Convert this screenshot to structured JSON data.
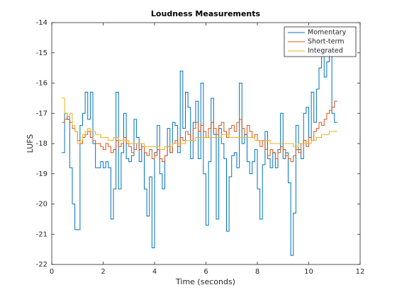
{
  "chart_data": {
    "type": "stairs",
    "title": "Loudness Measurements",
    "xlabel": "Time (seconds)",
    "ylabel": "LUFS",
    "xlim": [
      0,
      12
    ],
    "xticks": [
      0,
      2,
      4,
      6,
      8,
      10,
      12
    ],
    "ylim": [
      -22,
      -14
    ],
    "yticks": [
      -22,
      -21,
      -20,
      -19,
      -18,
      -17,
      -16,
      -15,
      -14
    ],
    "legend": "northeast",
    "x": [
      0.4,
      0.5,
      0.6,
      0.7,
      0.8,
      0.9,
      1.0,
      1.1,
      1.2,
      1.3,
      1.4,
      1.5,
      1.6,
      1.7,
      1.8,
      1.9,
      2.0,
      2.1,
      2.2,
      2.3,
      2.4,
      2.5,
      2.6,
      2.7,
      2.8,
      2.9,
      3.0,
      3.1,
      3.2,
      3.3,
      3.4,
      3.5,
      3.6,
      3.7,
      3.8,
      3.9,
      4.0,
      4.1,
      4.2,
      4.3,
      4.4,
      4.5,
      4.6,
      4.7,
      4.8,
      4.9,
      5.0,
      5.1,
      5.2,
      5.3,
      5.4,
      5.5,
      5.6,
      5.7,
      5.8,
      5.9,
      6.0,
      6.1,
      6.2,
      6.3,
      6.4,
      6.5,
      6.6,
      6.7,
      6.8,
      6.9,
      7.0,
      7.1,
      7.2,
      7.3,
      7.4,
      7.5,
      7.6,
      7.7,
      7.8,
      7.9,
      8.0,
      8.1,
      8.2,
      8.3,
      8.4,
      8.5,
      8.6,
      8.7,
      8.8,
      8.9,
      9.0,
      9.1,
      9.2,
      9.3,
      9.4,
      9.5,
      9.6,
      9.7,
      9.8,
      9.9,
      10.0,
      10.1,
      10.2,
      10.3,
      10.4,
      10.5,
      10.6,
      10.7,
      10.8,
      10.9,
      11.0
    ],
    "series": [
      {
        "name": "Momentary",
        "color": "#0072bd",
        "values": [
          -18.3,
          -17.0,
          -17.2,
          -18.8,
          -20.0,
          -20.85,
          -20.85,
          -17.4,
          -17.0,
          -16.3,
          -17.2,
          -16.3,
          -18.0,
          -18.8,
          -18.8,
          -18.6,
          -18.8,
          -18.6,
          -18.8,
          -20.5,
          -19.5,
          -16.3,
          -19.5,
          -18.3,
          -17.0,
          -18.5,
          -18.6,
          -18.4,
          -17.2,
          -17.8,
          -18.6,
          -18.0,
          -19.5,
          -20.4,
          -19.1,
          -21.45,
          -18.3,
          -17.4,
          -19.0,
          -19.5,
          -18.4,
          -17.5,
          -18.3,
          -17.3,
          -17.4,
          -18.3,
          -15.6,
          -17.5,
          -16.3,
          -16.8,
          -18.5,
          -17.3,
          -16.6,
          -18.5,
          -16.0,
          -19.0,
          -20.7,
          -18.6,
          -16.5,
          -17.7,
          -20.5,
          -17.5,
          -18.0,
          -18.5,
          -20.9,
          -19.1,
          -18.4,
          -18.3,
          -18.8,
          -16.0,
          -18.0,
          -17.7,
          -18.6,
          -19.0,
          -18.6,
          -18.2,
          -19.5,
          -20.5,
          -18.7,
          -17.6,
          -18.5,
          -18.8,
          -18.3,
          -18.8,
          -18.2,
          -17.0,
          -18.5,
          -18.3,
          -19.3,
          -21.7,
          -20.3,
          -17.4,
          -18.2,
          -18.5,
          -17.0,
          -16.8,
          -17.8,
          -16.3,
          -17.3,
          -16.2,
          -15.5,
          -14.8,
          -15.8,
          -15.3,
          -14.8,
          -17.0,
          -17.3
        ]
      },
      {
        "name": "Short-term",
        "color": "#d95319",
        "values": [
          -17.3,
          -17.2,
          -17.1,
          -17.3,
          -17.5,
          -17.6,
          -17.9,
          -18.0,
          -17.8,
          -17.7,
          -17.6,
          -17.8,
          -17.9,
          -18.0,
          -18.0,
          -18.1,
          -18.2,
          -18.0,
          -18.1,
          -18.3,
          -18.2,
          -17.9,
          -18.1,
          -18.0,
          -17.8,
          -18.0,
          -18.1,
          -18.3,
          -18.2,
          -18.0,
          -18.2,
          -18.1,
          -18.3,
          -18.4,
          -18.2,
          -18.5,
          -18.4,
          -18.2,
          -18.5,
          -18.6,
          -18.4,
          -18.1,
          -18.3,
          -18.0,
          -17.9,
          -18.1,
          -17.8,
          -17.9,
          -17.6,
          -17.7,
          -17.9,
          -17.5,
          -17.3,
          -17.6,
          -17.4,
          -17.6,
          -17.8,
          -17.5,
          -17.3,
          -17.5,
          -17.7,
          -17.4,
          -17.3,
          -17.6,
          -17.8,
          -17.5,
          -17.4,
          -17.6,
          -17.3,
          -17.2,
          -17.5,
          -17.7,
          -17.4,
          -17.6,
          -17.8,
          -17.7,
          -17.9,
          -18.1,
          -17.9,
          -18.2,
          -18.4,
          -18.2,
          -18.3,
          -18.5,
          -18.3,
          -18.1,
          -18.2,
          -18.4,
          -18.5,
          -18.6,
          -18.4,
          -18.2,
          -18.3,
          -18.0,
          -17.9,
          -18.1,
          -17.8,
          -17.9,
          -17.6,
          -17.5,
          -17.3,
          -17.4,
          -17.2,
          -17.0,
          -16.9,
          -16.8,
          -16.6
        ]
      },
      {
        "name": "Integrated",
        "color": "#edb120",
        "values": [
          -16.5,
          -17.0,
          -17.1,
          -17.0,
          -17.4,
          -17.6,
          -18.0,
          -17.9,
          -17.7,
          -17.6,
          -17.5,
          -17.6,
          -17.6,
          -17.7,
          -17.7,
          -17.8,
          -17.8,
          -17.8,
          -17.9,
          -17.9,
          -17.8,
          -17.8,
          -17.9,
          -17.9,
          -17.9,
          -17.9,
          -18.0,
          -18.0,
          -18.0,
          -18.0,
          -18.0,
          -18.0,
          -18.1,
          -18.1,
          -18.1,
          -18.1,
          -18.1,
          -18.1,
          -18.2,
          -18.2,
          -18.1,
          -18.1,
          -18.1,
          -18.0,
          -18.0,
          -18.0,
          -18.0,
          -18.0,
          -17.9,
          -17.9,
          -17.9,
          -17.9,
          -17.8,
          -17.8,
          -17.8,
          -17.8,
          -17.8,
          -17.8,
          -17.8,
          -17.8,
          -17.8,
          -17.8,
          -17.7,
          -17.7,
          -17.7,
          -17.8,
          -17.8,
          -17.8,
          -17.8,
          -17.8,
          -17.8,
          -17.8,
          -17.8,
          -17.8,
          -17.8,
          -17.9,
          -17.9,
          -17.9,
          -17.9,
          -17.9,
          -17.9,
          -18.0,
          -18.0,
          -18.0,
          -18.0,
          -18.0,
          -18.0,
          -18.0,
          -18.0,
          -18.0,
          -18.1,
          -18.1,
          -18.0,
          -18.0,
          -18.0,
          -18.0,
          -18.0,
          -17.9,
          -17.9,
          -17.8,
          -17.8,
          -17.7,
          -17.7,
          -17.7,
          -17.6,
          -17.6,
          -17.6
        ]
      }
    ]
  }
}
